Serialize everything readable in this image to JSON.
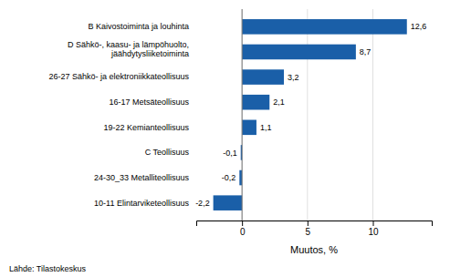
{
  "chart_data": {
    "type": "bar",
    "orientation": "horizontal",
    "categories": [
      "10-11 Elintarviketeollisuus",
      "24-30_33 Metalliteollisuus",
      "C Teollisuus",
      "19-22 Kemianteollisuus",
      "16-17 Metsäteollisuus",
      "26-27 Sähkö- ja elektroniikkateollisuus",
      "D Sähkö-, kaasu- ja lämpöhuolto,\njäähdytysliiketoiminta",
      "B Kaivostoiminta ja louhinta"
    ],
    "values": [
      -2.2,
      -0.2,
      -0.1,
      1.1,
      2.1,
      3.2,
      8.7,
      12.6
    ],
    "value_labels": [
      "-2,2",
      "-0,2",
      "-0,1",
      "1,1",
      "2,1",
      "3,2",
      "8,7",
      "12,6"
    ],
    "data_labels": true,
    "color": "#1a5fa8",
    "xlabel": "Muutos, %",
    "source": "Lähde: Tilastokeskus",
    "xlim": [
      -3.5,
      14.5
    ],
    "xticks": [
      0,
      5,
      10
    ],
    "grid": true
  }
}
